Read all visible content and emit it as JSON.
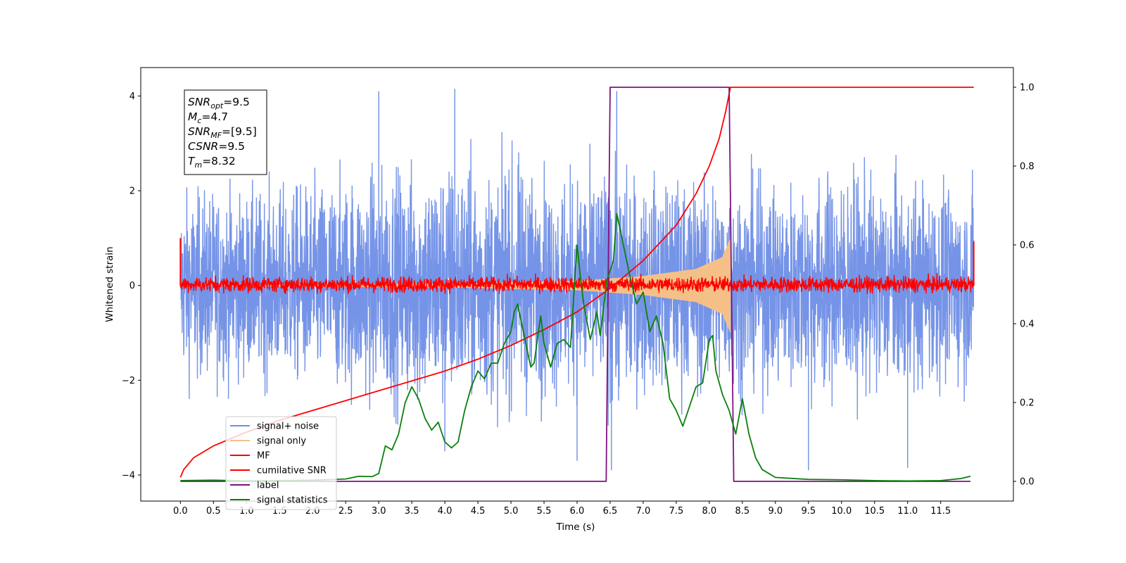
{
  "chart_data": {
    "type": "line",
    "title": "",
    "xlabel": "Time (s)",
    "ylabel": "Whitened strain",
    "xlim": [
      -0.6,
      12.6
    ],
    "ylim": [
      -4.55,
      4.6
    ],
    "y2lim": [
      -0.05,
      1.05
    ],
    "xticks": [
      "0.0",
      "0.5",
      "1.0",
      "1.5",
      "2.0",
      "2.5",
      "3.0",
      "3.5",
      "4.0",
      "4.5",
      "5.0",
      "5.5",
      "6.0",
      "6.5",
      "7.0",
      "7.5",
      "8.0",
      "8.5",
      "9.0",
      "9.5",
      "10.0",
      "10.5",
      "11.0",
      "11.5"
    ],
    "yticks": [
      "−4",
      "−2",
      "0",
      "2",
      "4"
    ],
    "y2ticks": [
      "0.0",
      "0.2",
      "0.4",
      "0.6",
      "0.8",
      "1.0"
    ],
    "grid": false,
    "legend_position": "lower-left",
    "info_box": {
      "position": "top-left",
      "lines": [
        {
          "sym": "SNR",
          "sub": "opt",
          "val": "=9.5"
        },
        {
          "sym": "M",
          "sub": "c",
          "val": "=4.7"
        },
        {
          "sym": "SNR",
          "sub": "MF",
          "val": "=[9.5]"
        },
        {
          "sym": "CSNR",
          "sub": "",
          "val": "=9.5"
        },
        {
          "sym": "T",
          "sub": "m",
          "val": "=8.32"
        }
      ]
    },
    "series": [
      {
        "name": "signal+ noise",
        "color": "#6f8ee6",
        "axis": "left",
        "kind": "noise_band",
        "x_range": [
          0,
          12
        ],
        "center": 0.0,
        "envelope": [
          [
            0.0,
            2.6
          ],
          [
            0.5,
            2.7
          ],
          [
            1.0,
            2.6
          ],
          [
            2.0,
            2.9
          ],
          [
            3.0,
            3.3
          ],
          [
            4.0,
            3.6
          ],
          [
            5.0,
            3.2
          ],
          [
            6.0,
            3.1
          ],
          [
            6.5,
            3.3
          ],
          [
            7.0,
            3.0
          ],
          [
            8.0,
            3.0
          ],
          [
            9.0,
            2.9
          ],
          [
            10.0,
            3.2
          ],
          [
            11.0,
            2.9
          ],
          [
            12.0,
            2.8
          ]
        ],
        "peaks": [
          [
            3.0,
            4.1
          ],
          [
            4.15,
            4.15
          ],
          [
            6.6,
            4.1
          ],
          [
            6.52,
            -3.9
          ],
          [
            6.0,
            -3.7
          ],
          [
            9.5,
            -3.9
          ],
          [
            11.0,
            -3.85
          ],
          [
            4.0,
            -3.5
          ]
        ]
      },
      {
        "name": "signal only",
        "color": "#f5c088",
        "axis": "left",
        "kind": "chirp",
        "x_range": [
          0,
          8.32
        ],
        "amplitude": [
          [
            0.0,
            0.01
          ],
          [
            4.0,
            0.04
          ],
          [
            6.0,
            0.1
          ],
          [
            7.0,
            0.2
          ],
          [
            7.8,
            0.35
          ],
          [
            8.2,
            0.6
          ],
          [
            8.32,
            1.0
          ]
        ]
      },
      {
        "name": "MF",
        "color": "#ff0000",
        "axis": "left",
        "kind": "noise_band",
        "x_range": [
          0,
          12
        ],
        "center": 0.02,
        "envelope": [
          [
            0.0,
            0.18
          ],
          [
            12.0,
            0.18
          ]
        ],
        "edge_spikes": [
          [
            0.0,
            1.0
          ],
          [
            12.0,
            0.93
          ]
        ]
      },
      {
        "name": "cumilative SNR",
        "color": "#ff0000",
        "axis": "right",
        "x": [
          0.0,
          0.05,
          0.2,
          0.5,
          1.0,
          1.5,
          2.0,
          2.5,
          3.0,
          3.5,
          4.0,
          4.5,
          5.0,
          5.5,
          6.0,
          6.5,
          7.0,
          7.5,
          7.8,
          8.0,
          8.15,
          8.25,
          8.32,
          12.0
        ],
        "y": [
          0.01,
          0.03,
          0.06,
          0.09,
          0.125,
          0.155,
          0.18,
          0.205,
          0.23,
          0.255,
          0.28,
          0.31,
          0.345,
          0.385,
          0.43,
          0.49,
          0.56,
          0.65,
          0.73,
          0.8,
          0.87,
          0.94,
          1.0,
          1.0
        ]
      },
      {
        "name": "label",
        "color": "#7d137f",
        "axis": "right",
        "x": [
          0.0,
          6.44,
          6.5,
          8.3,
          8.37,
          11.95
        ],
        "y": [
          0.0,
          0.0,
          1.0,
          1.0,
          0.0,
          0.0
        ]
      },
      {
        "name": "signal statistics",
        "color": "#0b7f0b",
        "axis": "right",
        "x": [
          0.0,
          0.5,
          1.0,
          1.5,
          2.0,
          2.5,
          2.7,
          2.9,
          3.0,
          3.1,
          3.2,
          3.3,
          3.4,
          3.5,
          3.6,
          3.7,
          3.8,
          3.9,
          4.0,
          4.1,
          4.2,
          4.3,
          4.4,
          4.5,
          4.6,
          4.7,
          4.8,
          4.9,
          5.0,
          5.05,
          5.1,
          5.2,
          5.3,
          5.35,
          5.45,
          5.5,
          5.6,
          5.7,
          5.8,
          5.9,
          6.0,
          6.05,
          6.1,
          6.2,
          6.3,
          6.35,
          6.45,
          6.55,
          6.6,
          6.7,
          6.8,
          6.9,
          7.0,
          7.1,
          7.2,
          7.3,
          7.4,
          7.5,
          7.6,
          7.7,
          7.8,
          7.9,
          8.0,
          8.05,
          8.1,
          8.2,
          8.3,
          8.4,
          8.5,
          8.6,
          8.7,
          8.8,
          9.0,
          9.5,
          10.0,
          10.5,
          11.0,
          11.5,
          11.8,
          11.95
        ],
        "y": [
          0.002,
          0.003,
          0.001,
          0.002,
          0.003,
          0.006,
          0.013,
          0.012,
          0.02,
          0.09,
          0.08,
          0.12,
          0.2,
          0.24,
          0.21,
          0.16,
          0.13,
          0.15,
          0.1,
          0.085,
          0.1,
          0.18,
          0.24,
          0.28,
          0.26,
          0.3,
          0.3,
          0.35,
          0.38,
          0.43,
          0.45,
          0.37,
          0.29,
          0.3,
          0.42,
          0.35,
          0.29,
          0.35,
          0.36,
          0.34,
          0.6,
          0.52,
          0.45,
          0.36,
          0.43,
          0.37,
          0.51,
          0.56,
          0.68,
          0.6,
          0.52,
          0.45,
          0.48,
          0.38,
          0.42,
          0.35,
          0.21,
          0.18,
          0.14,
          0.19,
          0.24,
          0.25,
          0.36,
          0.37,
          0.28,
          0.22,
          0.18,
          0.12,
          0.21,
          0.12,
          0.06,
          0.03,
          0.01,
          0.005,
          0.004,
          0.002,
          0.001,
          0.002,
          0.007,
          0.013
        ]
      }
    ]
  }
}
